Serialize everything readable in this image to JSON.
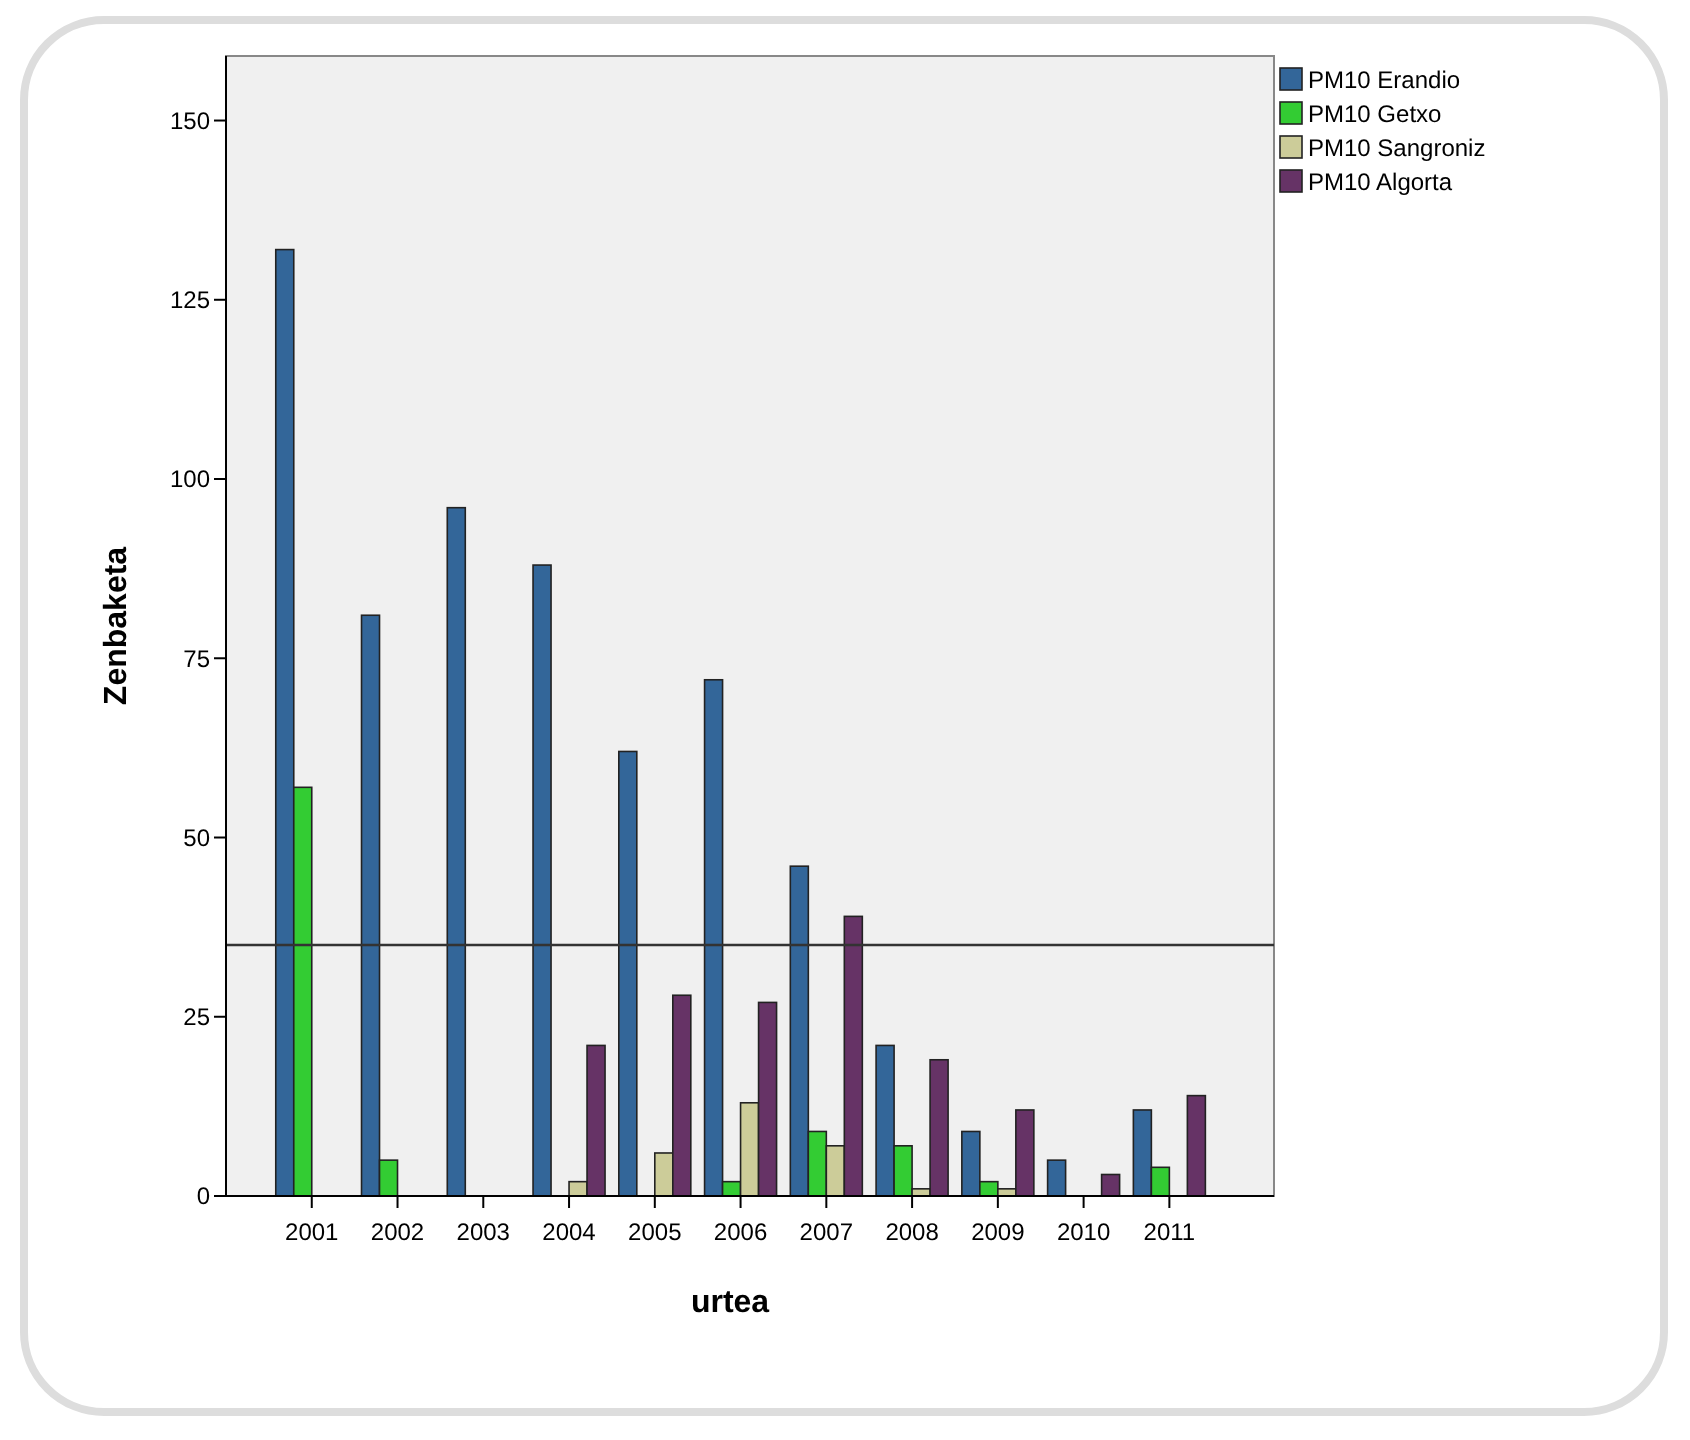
{
  "chart_data": {
    "type": "bar",
    "xlabel": "urtea",
    "ylabel": "Zenbaketa",
    "categories": [
      "2001",
      "2002",
      "2003",
      "2004",
      "2005",
      "2006",
      "2007",
      "2008",
      "2009",
      "2010",
      "2011"
    ],
    "series": [
      {
        "name": "PM10 Erandio",
        "color": "#336699",
        "values": [
          132,
          81,
          96,
          88,
          62,
          72,
          46,
          21,
          9,
          5,
          12
        ]
      },
      {
        "name": "PM10 Getxo",
        "color": "#33cc33",
        "values": [
          57,
          5,
          null,
          null,
          null,
          2,
          9,
          7,
          2,
          null,
          4
        ]
      },
      {
        "name": "PM10 Sangroniz",
        "color": "#cccc99",
        "values": [
          null,
          null,
          null,
          2,
          6,
          13,
          7,
          1,
          1,
          null,
          null
        ]
      },
      {
        "name": "PM10 Algorta",
        "color": "#663366",
        "values": [
          null,
          null,
          null,
          21,
          28,
          27,
          39,
          19,
          12,
          3,
          14
        ]
      }
    ],
    "ylim": [
      0,
      159
    ],
    "yticks": [
      0,
      25,
      50,
      75,
      100,
      125,
      150
    ],
    "grid": false,
    "legend": "top right",
    "ref_lines": [
      {
        "axis": "y",
        "value": 35,
        "color": "#333333"
      }
    ]
  }
}
